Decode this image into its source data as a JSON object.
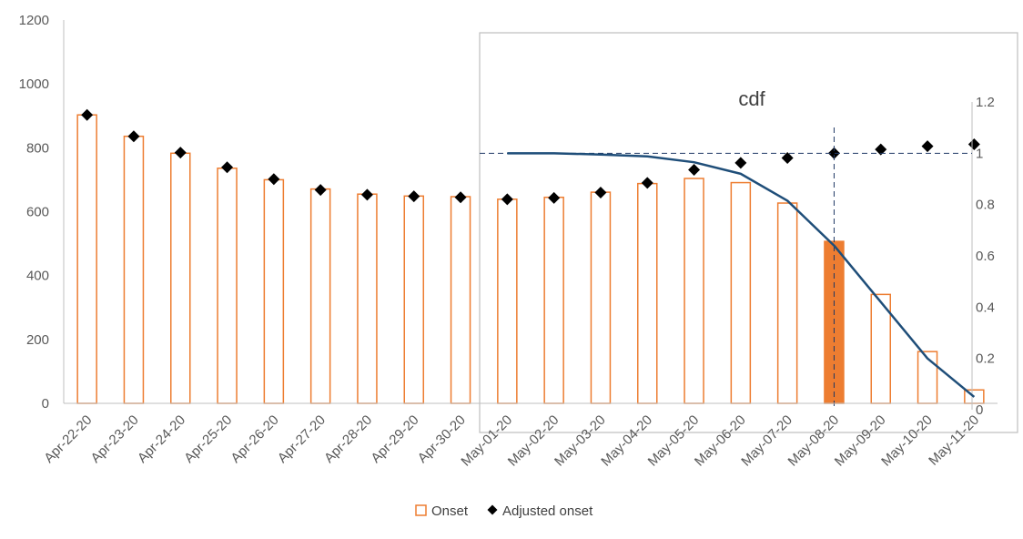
{
  "chart_data": {
    "type": "bar",
    "categories": [
      "Apr-22-20",
      "Apr-23-20",
      "Apr-24-20",
      "Apr-25-20",
      "Apr-26-20",
      "Apr-27-20",
      "Apr-28-20",
      "Apr-29-20",
      "Apr-30-20",
      "May-01-20",
      "May-02-20",
      "May-03-20",
      "May-04-20",
      "May-05-20",
      "May-06-20",
      "May-07-20",
      "May-08-20",
      "May-09-20",
      "May-10-20",
      "May-11-20"
    ],
    "series": [
      {
        "name": "Onset",
        "type": "bar",
        "values": [
          903,
          836,
          783,
          736,
          700,
          671,
          655,
          649,
          647,
          639,
          645,
          661,
          688,
          704,
          691,
          627,
          507,
          341,
          162,
          42
        ]
      },
      {
        "name": "Adjusted onset",
        "type": "scatter",
        "values": [
          903,
          836,
          785,
          739,
          702,
          668,
          653,
          648,
          645,
          639,
          643,
          660,
          690,
          731,
          753,
          768,
          783,
          795,
          805,
          811
        ]
      }
    ],
    "highlight_index": 16,
    "ylim": [
      0,
      1200
    ],
    "yticks": [
      0,
      200,
      400,
      600,
      800,
      1000,
      1200
    ],
    "legend_position": "bottom",
    "inset": {
      "title": "cdf",
      "type": "line",
      "x_start_index": 9,
      "x_end_index": 19,
      "values": [
        1.0,
        1.0,
        0.995,
        0.988,
        0.965,
        0.92,
        0.815,
        0.64,
        0.42,
        0.2,
        0.05
      ],
      "ylim": [
        0,
        1.2
      ],
      "yticks": [
        "0",
        "0.2",
        "0.4",
        "0.6",
        "0.8",
        "1",
        "1.2"
      ],
      "reference_y": 1,
      "reference_x_index": 16
    },
    "colors": {
      "bar": "#ED7D31",
      "marker": "#000000",
      "cdf": "#1F4E79",
      "axis": "#BFBFBF",
      "text": "#595959"
    }
  }
}
